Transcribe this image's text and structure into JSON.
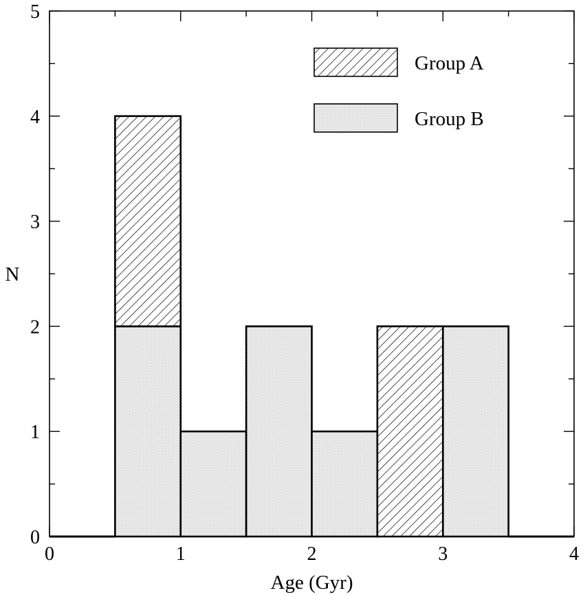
{
  "chart_data": {
    "type": "bar",
    "title": "",
    "xlabel": "Age (Gyr)",
    "ylabel": "N",
    "xlim": [
      0,
      4
    ],
    "ylim": [
      0,
      5
    ],
    "x_ticks": [
      0,
      1,
      2,
      3,
      4
    ],
    "y_ticks": [
      0,
      1,
      2,
      3,
      4,
      5
    ],
    "x_ticks_minor_step": 0.5,
    "y_ticks_minor_step": 0.5,
    "grid": false,
    "bar_layout": "stacked",
    "bin_width": 0.5,
    "bins": [
      "0.5-1.0",
      "1.0-1.5",
      "1.5-2.0",
      "2.0-2.5",
      "2.5-3.0",
      "3.0-3.5"
    ],
    "bin_starts": [
      0.5,
      1.0,
      1.5,
      2.0,
      2.5,
      3.0
    ],
    "series": [
      {
        "name": "Group B",
        "values": [
          2,
          1,
          2,
          1,
          0,
          2
        ],
        "fill": "stipple",
        "color": "#e8e8e8"
      },
      {
        "name": "Group A",
        "values": [
          2,
          0,
          0,
          0,
          2,
          0
        ],
        "fill": "hatch",
        "color": "#ffffff"
      }
    ],
    "legend": {
      "placement": "top-right",
      "items": [
        "Group A",
        "Group B"
      ]
    },
    "colors": {
      "axis": "#000000",
      "outline": "#000000"
    }
  }
}
